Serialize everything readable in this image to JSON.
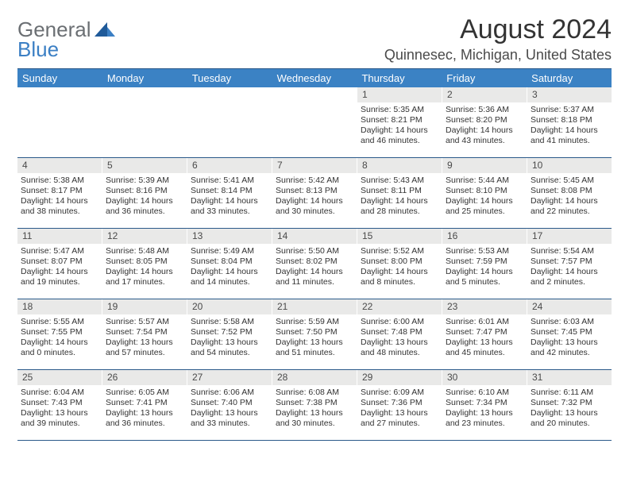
{
  "logo": {
    "general": "General",
    "blue": "Blue"
  },
  "title": "August 2024",
  "location": "Quinnesec, Michigan, United States",
  "colors": {
    "header_bg": "#3b82c4",
    "header_text": "#ffffff",
    "daynum_bg": "#e9e9e8",
    "border": "#2b5a8a",
    "logo_gray": "#6b6f73",
    "logo_blue": "#3b7fc4"
  },
  "day_headers": [
    "Sunday",
    "Monday",
    "Tuesday",
    "Wednesday",
    "Thursday",
    "Friday",
    "Saturday"
  ],
  "weeks": [
    [
      null,
      null,
      null,
      null,
      {
        "n": "1",
        "sr": "5:35 AM",
        "ss": "8:21 PM",
        "dl": "14 hours and 46 minutes."
      },
      {
        "n": "2",
        "sr": "5:36 AM",
        "ss": "8:20 PM",
        "dl": "14 hours and 43 minutes."
      },
      {
        "n": "3",
        "sr": "5:37 AM",
        "ss": "8:18 PM",
        "dl": "14 hours and 41 minutes."
      }
    ],
    [
      {
        "n": "4",
        "sr": "5:38 AM",
        "ss": "8:17 PM",
        "dl": "14 hours and 38 minutes."
      },
      {
        "n": "5",
        "sr": "5:39 AM",
        "ss": "8:16 PM",
        "dl": "14 hours and 36 minutes."
      },
      {
        "n": "6",
        "sr": "5:41 AM",
        "ss": "8:14 PM",
        "dl": "14 hours and 33 minutes."
      },
      {
        "n": "7",
        "sr": "5:42 AM",
        "ss": "8:13 PM",
        "dl": "14 hours and 30 minutes."
      },
      {
        "n": "8",
        "sr": "5:43 AM",
        "ss": "8:11 PM",
        "dl": "14 hours and 28 minutes."
      },
      {
        "n": "9",
        "sr": "5:44 AM",
        "ss": "8:10 PM",
        "dl": "14 hours and 25 minutes."
      },
      {
        "n": "10",
        "sr": "5:45 AM",
        "ss": "8:08 PM",
        "dl": "14 hours and 22 minutes."
      }
    ],
    [
      {
        "n": "11",
        "sr": "5:47 AM",
        "ss": "8:07 PM",
        "dl": "14 hours and 19 minutes."
      },
      {
        "n": "12",
        "sr": "5:48 AM",
        "ss": "8:05 PM",
        "dl": "14 hours and 17 minutes."
      },
      {
        "n": "13",
        "sr": "5:49 AM",
        "ss": "8:04 PM",
        "dl": "14 hours and 14 minutes."
      },
      {
        "n": "14",
        "sr": "5:50 AM",
        "ss": "8:02 PM",
        "dl": "14 hours and 11 minutes."
      },
      {
        "n": "15",
        "sr": "5:52 AM",
        "ss": "8:00 PM",
        "dl": "14 hours and 8 minutes."
      },
      {
        "n": "16",
        "sr": "5:53 AM",
        "ss": "7:59 PM",
        "dl": "14 hours and 5 minutes."
      },
      {
        "n": "17",
        "sr": "5:54 AM",
        "ss": "7:57 PM",
        "dl": "14 hours and 2 minutes."
      }
    ],
    [
      {
        "n": "18",
        "sr": "5:55 AM",
        "ss": "7:55 PM",
        "dl": "14 hours and 0 minutes."
      },
      {
        "n": "19",
        "sr": "5:57 AM",
        "ss": "7:54 PM",
        "dl": "13 hours and 57 minutes."
      },
      {
        "n": "20",
        "sr": "5:58 AM",
        "ss": "7:52 PM",
        "dl": "13 hours and 54 minutes."
      },
      {
        "n": "21",
        "sr": "5:59 AM",
        "ss": "7:50 PM",
        "dl": "13 hours and 51 minutes."
      },
      {
        "n": "22",
        "sr": "6:00 AM",
        "ss": "7:48 PM",
        "dl": "13 hours and 48 minutes."
      },
      {
        "n": "23",
        "sr": "6:01 AM",
        "ss": "7:47 PM",
        "dl": "13 hours and 45 minutes."
      },
      {
        "n": "24",
        "sr": "6:03 AM",
        "ss": "7:45 PM",
        "dl": "13 hours and 42 minutes."
      }
    ],
    [
      {
        "n": "25",
        "sr": "6:04 AM",
        "ss": "7:43 PM",
        "dl": "13 hours and 39 minutes."
      },
      {
        "n": "26",
        "sr": "6:05 AM",
        "ss": "7:41 PM",
        "dl": "13 hours and 36 minutes."
      },
      {
        "n": "27",
        "sr": "6:06 AM",
        "ss": "7:40 PM",
        "dl": "13 hours and 33 minutes."
      },
      {
        "n": "28",
        "sr": "6:08 AM",
        "ss": "7:38 PM",
        "dl": "13 hours and 30 minutes."
      },
      {
        "n": "29",
        "sr": "6:09 AM",
        "ss": "7:36 PM",
        "dl": "13 hours and 27 minutes."
      },
      {
        "n": "30",
        "sr": "6:10 AM",
        "ss": "7:34 PM",
        "dl": "13 hours and 23 minutes."
      },
      {
        "n": "31",
        "sr": "6:11 AM",
        "ss": "7:32 PM",
        "dl": "13 hours and 20 minutes."
      }
    ]
  ],
  "labels": {
    "sunrise_prefix": "Sunrise: ",
    "sunset_prefix": "Sunset: ",
    "daylight_prefix": "Daylight: "
  }
}
